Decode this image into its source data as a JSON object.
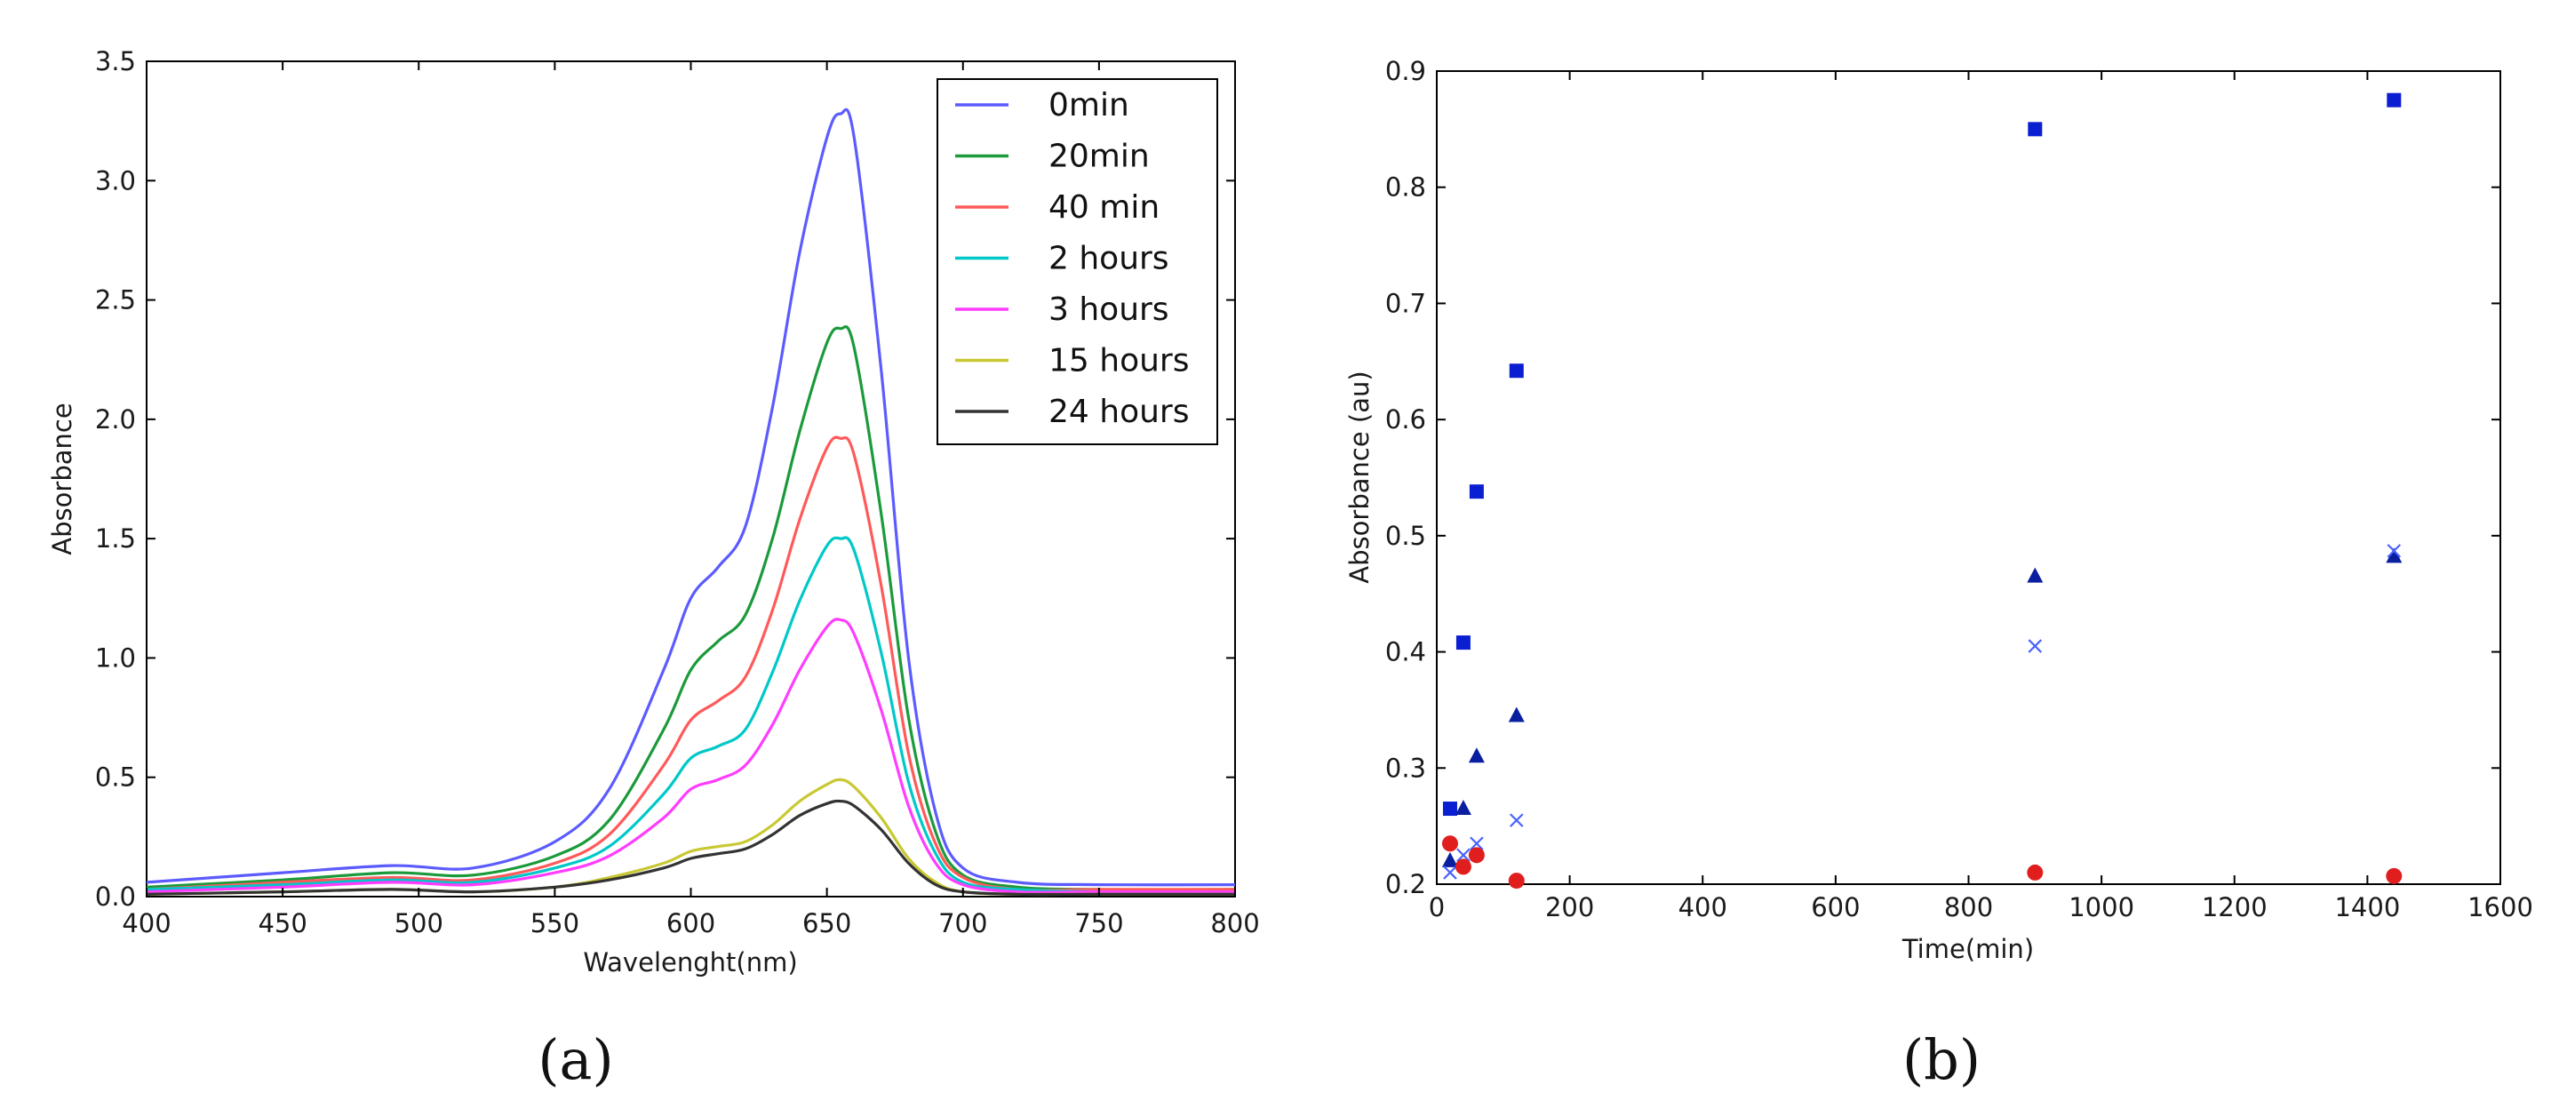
{
  "chart_data": [
    {
      "panel_label": "(a)",
      "type": "line",
      "xlabel": "Wavelenght(nm)",
      "ylabel": "Absorbance",
      "xlim": [
        400,
        800
      ],
      "ylim": [
        0,
        3.5
      ],
      "xticks": [
        400,
        450,
        500,
        550,
        600,
        650,
        700,
        750,
        800
      ],
      "yticks": [
        0.0,
        0.5,
        1.0,
        1.5,
        2.0,
        2.5,
        3.0,
        3.5
      ],
      "xtick_labels": [
        "400",
        "450",
        "500",
        "550",
        "600",
        "650",
        "700",
        "750",
        "800"
      ],
      "ytick_labels": [
        "0.0",
        "0.5",
        "1.0",
        "1.5",
        "2.0",
        "2.5",
        "3.0",
        "3.5"
      ],
      "legend_position": "top-right",
      "x": [
        400,
        450,
        490,
        520,
        550,
        570,
        590,
        600,
        610,
        620,
        630,
        640,
        650,
        655,
        660,
        670,
        680,
        690,
        700,
        720,
        750,
        800
      ],
      "series": [
        {
          "name": "0min",
          "color": "#5b5bff",
          "values": [
            0.06,
            0.1,
            0.13,
            0.12,
            0.23,
            0.45,
            0.95,
            1.25,
            1.38,
            1.55,
            2.05,
            2.7,
            3.18,
            3.28,
            3.18,
            2.2,
            1.0,
            0.35,
            0.12,
            0.06,
            0.05,
            0.05
          ]
        },
        {
          "name": "20min",
          "color": "#1a9a3a",
          "values": [
            0.04,
            0.07,
            0.1,
            0.09,
            0.17,
            0.32,
            0.7,
            0.95,
            1.07,
            1.18,
            1.5,
            1.95,
            2.32,
            2.38,
            2.3,
            1.6,
            0.75,
            0.27,
            0.09,
            0.04,
            0.03,
            0.03
          ]
        },
        {
          "name": "40 min",
          "color": "#ff5a5a",
          "values": [
            0.03,
            0.06,
            0.08,
            0.07,
            0.14,
            0.26,
            0.55,
            0.74,
            0.82,
            0.92,
            1.2,
            1.58,
            1.88,
            1.92,
            1.85,
            1.3,
            0.6,
            0.22,
            0.08,
            0.03,
            0.03,
            0.03
          ]
        },
        {
          "name": "2 hours",
          "color": "#00c8c8",
          "values": [
            0.03,
            0.05,
            0.07,
            0.06,
            0.12,
            0.21,
            0.43,
            0.58,
            0.63,
            0.7,
            0.94,
            1.24,
            1.47,
            1.5,
            1.45,
            1.02,
            0.48,
            0.18,
            0.06,
            0.03,
            0.02,
            0.02
          ]
        },
        {
          "name": "3 hours",
          "color": "#ff3cff",
          "values": [
            0.02,
            0.04,
            0.06,
            0.05,
            0.1,
            0.17,
            0.33,
            0.45,
            0.49,
            0.55,
            0.72,
            0.95,
            1.13,
            1.16,
            1.1,
            0.78,
            0.38,
            0.14,
            0.05,
            0.02,
            0.02,
            0.02
          ]
        },
        {
          "name": "15 hours",
          "color": "#c8c832",
          "values": [
            0.01,
            0.02,
            0.03,
            0.02,
            0.04,
            0.08,
            0.14,
            0.19,
            0.21,
            0.23,
            0.3,
            0.4,
            0.47,
            0.49,
            0.46,
            0.33,
            0.16,
            0.06,
            0.02,
            0.01,
            0.01,
            0.01
          ]
        },
        {
          "name": "24 hours",
          "color": "#333333",
          "values": [
            0.01,
            0.02,
            0.03,
            0.02,
            0.04,
            0.07,
            0.12,
            0.16,
            0.18,
            0.2,
            0.26,
            0.34,
            0.39,
            0.4,
            0.38,
            0.28,
            0.14,
            0.05,
            0.02,
            0.01,
            0.01,
            0.01
          ]
        }
      ]
    },
    {
      "panel_label": "(b)",
      "type": "scatter",
      "xlabel": "Time(min)",
      "ylabel": "Absorbance (au)",
      "xlim": [
        0,
        1600
      ],
      "ylim": [
        0.2,
        0.9
      ],
      "xticks": [
        0,
        200,
        400,
        600,
        800,
        1000,
        1200,
        1400,
        1600
      ],
      "yticks": [
        0.2,
        0.3,
        0.4,
        0.5,
        0.6,
        0.7,
        0.8,
        0.9
      ],
      "xtick_labels": [
        "0",
        "200",
        "400",
        "600",
        "800",
        "1000",
        "1200",
        "1400",
        "1600"
      ],
      "ytick_labels": [
        "0.2",
        "0.3",
        "0.4",
        "0.5",
        "0.6",
        "0.7",
        "0.8",
        "0.9"
      ],
      "series": [
        {
          "marker": "square",
          "color": "#0a1ed2",
          "x": [
            20,
            40,
            60,
            120,
            900,
            1440
          ],
          "y": [
            0.265,
            0.408,
            0.538,
            0.642,
            0.85,
            0.875
          ]
        },
        {
          "marker": "triangle",
          "color": "#0a1ea0",
          "x": [
            20,
            40,
            60,
            120,
            900,
            1440
          ],
          "y": [
            0.22,
            0.265,
            0.31,
            0.345,
            0.465,
            0.482
          ]
        },
        {
          "marker": "x",
          "color": "#4a62ff",
          "x": [
            20,
            40,
            60,
            120,
            900,
            1440
          ],
          "y": [
            0.21,
            0.225,
            0.235,
            0.255,
            0.405,
            0.487
          ]
        },
        {
          "marker": "circle",
          "color": "#e01e1e",
          "x": [
            20,
            40,
            60,
            120,
            900,
            1440
          ],
          "y": [
            0.235,
            0.215,
            0.225,
            0.203,
            0.21,
            0.207
          ]
        }
      ]
    }
  ]
}
